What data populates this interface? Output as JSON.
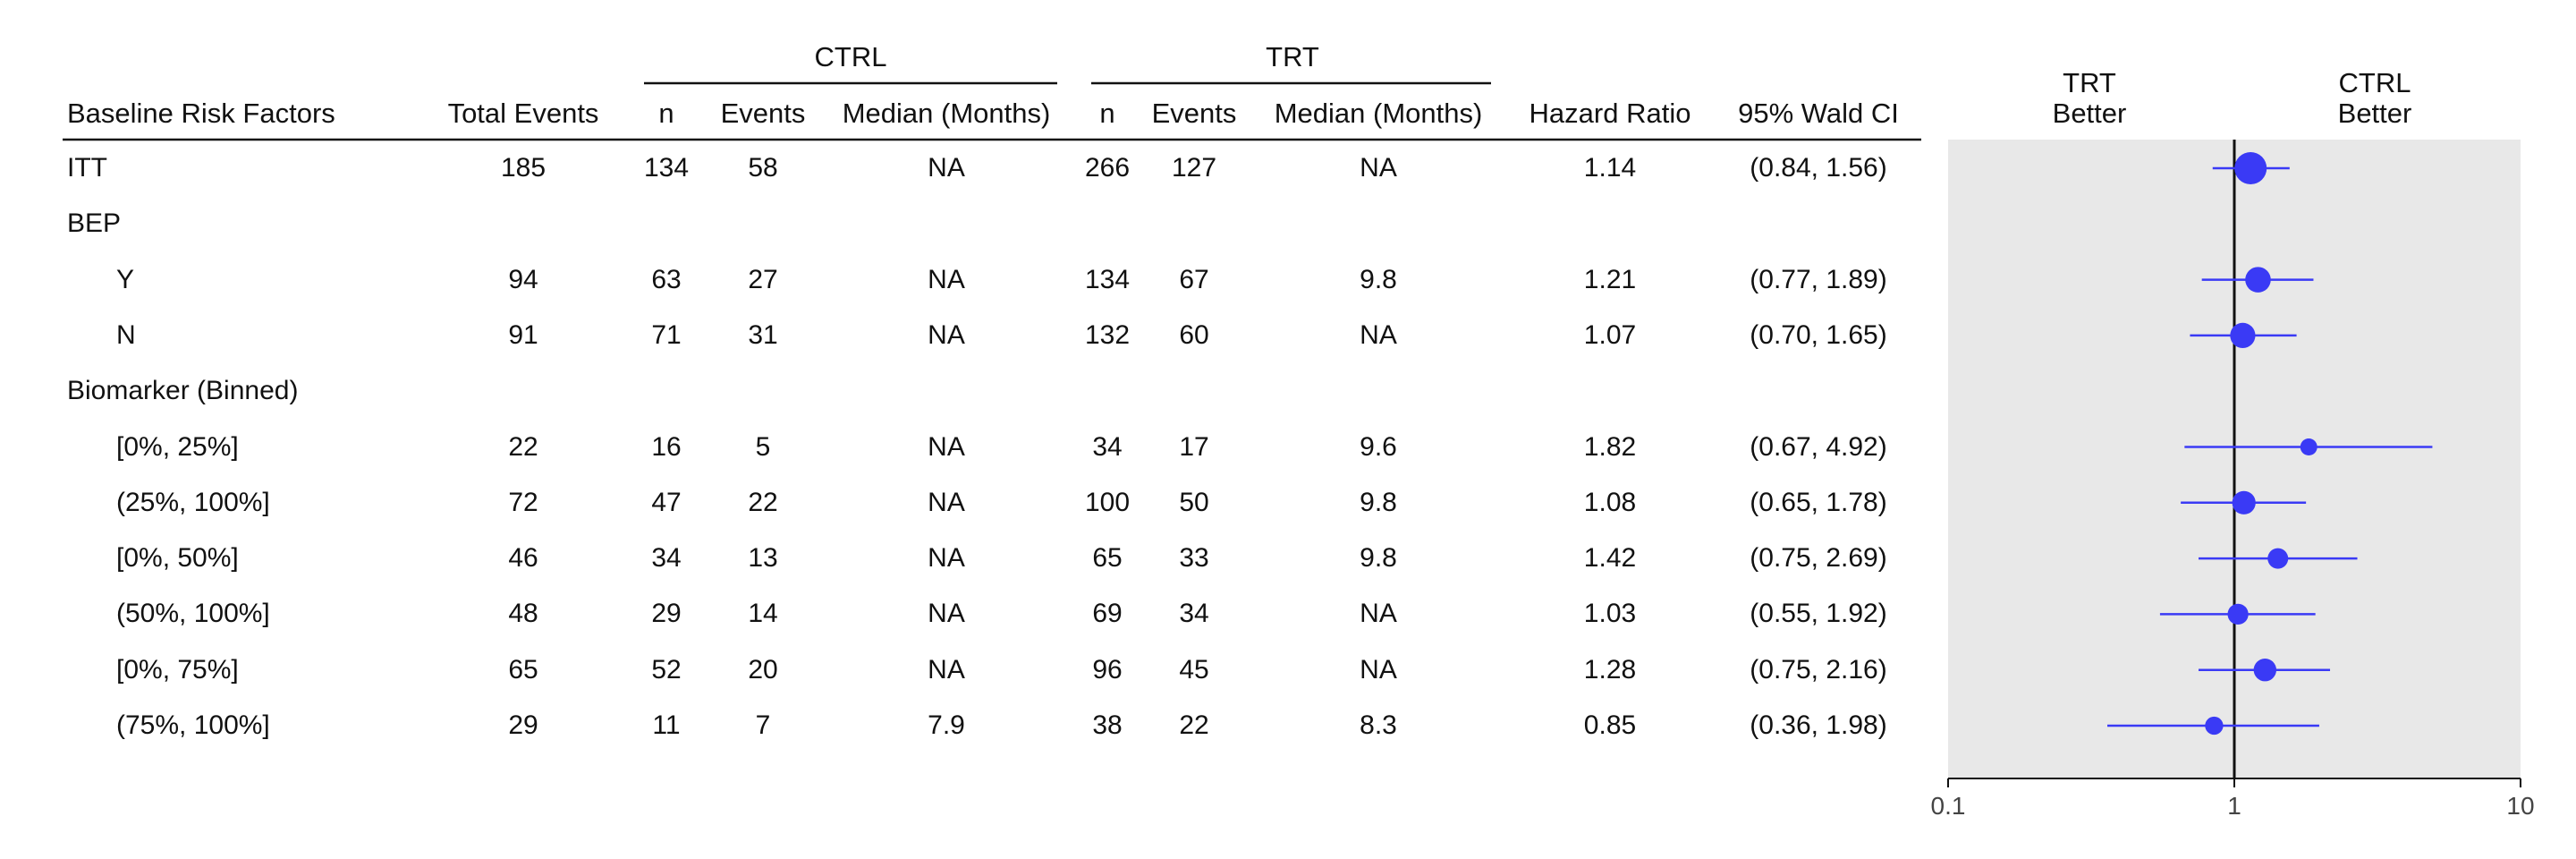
{
  "table": {
    "group_headers": {
      "ctrl": "CTRL",
      "trt": "TRT"
    },
    "columns": [
      "Baseline Risk Factors",
      "Total Events",
      "n",
      "Events",
      "Median (Months)",
      "n",
      "Events",
      "Median (Months)",
      "Hazard Ratio",
      "95% Wald CI"
    ]
  },
  "forest_header": {
    "left": {
      "line1": "TRT",
      "line2": "Better"
    },
    "right": {
      "line1": "CTRL",
      "line2": "Better"
    }
  },
  "chart_data": {
    "type": "forest",
    "x_scale": "log",
    "xlim": [
      0.1,
      10
    ],
    "xticks": [
      "0.1",
      "1",
      "10"
    ],
    "reference_line": 1,
    "point_color": "#3a3af5",
    "panel_background": "#e8e8e8",
    "rows": [
      {
        "label": "ITT",
        "indent": 0,
        "total": "185",
        "ctrl_n": "134",
        "ctrl_events": "58",
        "ctrl_median": "NA",
        "trt_n": "266",
        "trt_events": "127",
        "trt_median": "NA",
        "hr_text": "1.14",
        "ci_text": "(0.84, 1.56)",
        "hr": 1.14,
        "lo": 0.84,
        "hi": 1.56,
        "weight": 185
      },
      {
        "label": "BEP",
        "indent": 0
      },
      {
        "label": "Y",
        "indent": 1,
        "total": "94",
        "ctrl_n": "63",
        "ctrl_events": "27",
        "ctrl_median": "NA",
        "trt_n": "134",
        "trt_events": "67",
        "trt_median": "9.8",
        "hr_text": "1.21",
        "ci_text": "(0.77, 1.89)",
        "hr": 1.21,
        "lo": 0.77,
        "hi": 1.89,
        "weight": 94
      },
      {
        "label": "N",
        "indent": 1,
        "total": "91",
        "ctrl_n": "71",
        "ctrl_events": "31",
        "ctrl_median": "NA",
        "trt_n": "132",
        "trt_events": "60",
        "trt_median": "NA",
        "hr_text": "1.07",
        "ci_text": "(0.70, 1.65)",
        "hr": 1.07,
        "lo": 0.7,
        "hi": 1.65,
        "weight": 91
      },
      {
        "label": "Biomarker (Binned)",
        "indent": 0
      },
      {
        "label": "[0%, 25%]",
        "indent": 1,
        "total": "22",
        "ctrl_n": "16",
        "ctrl_events": "5",
        "ctrl_median": "NA",
        "trt_n": "34",
        "trt_events": "17",
        "trt_median": "9.6",
        "hr_text": "1.82",
        "ci_text": "(0.67, 4.92)",
        "hr": 1.82,
        "lo": 0.67,
        "hi": 4.92,
        "weight": 22
      },
      {
        "label": "(25%, 100%]",
        "indent": 1,
        "total": "72",
        "ctrl_n": "47",
        "ctrl_events": "22",
        "ctrl_median": "NA",
        "trt_n": "100",
        "trt_events": "50",
        "trt_median": "9.8",
        "hr_text": "1.08",
        "ci_text": "(0.65, 1.78)",
        "hr": 1.08,
        "lo": 0.65,
        "hi": 1.78,
        "weight": 72
      },
      {
        "label": "[0%, 50%]",
        "indent": 1,
        "total": "46",
        "ctrl_n": "34",
        "ctrl_events": "13",
        "ctrl_median": "NA",
        "trt_n": "65",
        "trt_events": "33",
        "trt_median": "9.8",
        "hr_text": "1.42",
        "ci_text": "(0.75, 2.69)",
        "hr": 1.42,
        "lo": 0.75,
        "hi": 2.69,
        "weight": 46
      },
      {
        "label": "(50%, 100%]",
        "indent": 1,
        "total": "48",
        "ctrl_n": "29",
        "ctrl_events": "14",
        "ctrl_median": "NA",
        "trt_n": "69",
        "trt_events": "34",
        "trt_median": "NA",
        "hr_text": "1.03",
        "ci_text": "(0.55, 1.92)",
        "hr": 1.03,
        "lo": 0.55,
        "hi": 1.92,
        "weight": 48
      },
      {
        "label": "[0%, 75%]",
        "indent": 1,
        "total": "65",
        "ctrl_n": "52",
        "ctrl_events": "20",
        "ctrl_median": "NA",
        "trt_n": "96",
        "trt_events": "45",
        "trt_median": "NA",
        "hr_text": "1.28",
        "ci_text": "(0.75, 2.16)",
        "hr": 1.28,
        "lo": 0.75,
        "hi": 2.16,
        "weight": 65
      },
      {
        "label": "(75%, 100%]",
        "indent": 1,
        "total": "29",
        "ctrl_n": "11",
        "ctrl_events": "7",
        "ctrl_median": "7.9",
        "trt_n": "38",
        "trt_events": "22",
        "trt_median": "8.3",
        "hr_text": "0.85",
        "ci_text": "(0.36, 1.98)",
        "hr": 0.85,
        "lo": 0.36,
        "hi": 1.98,
        "weight": 29
      }
    ]
  }
}
